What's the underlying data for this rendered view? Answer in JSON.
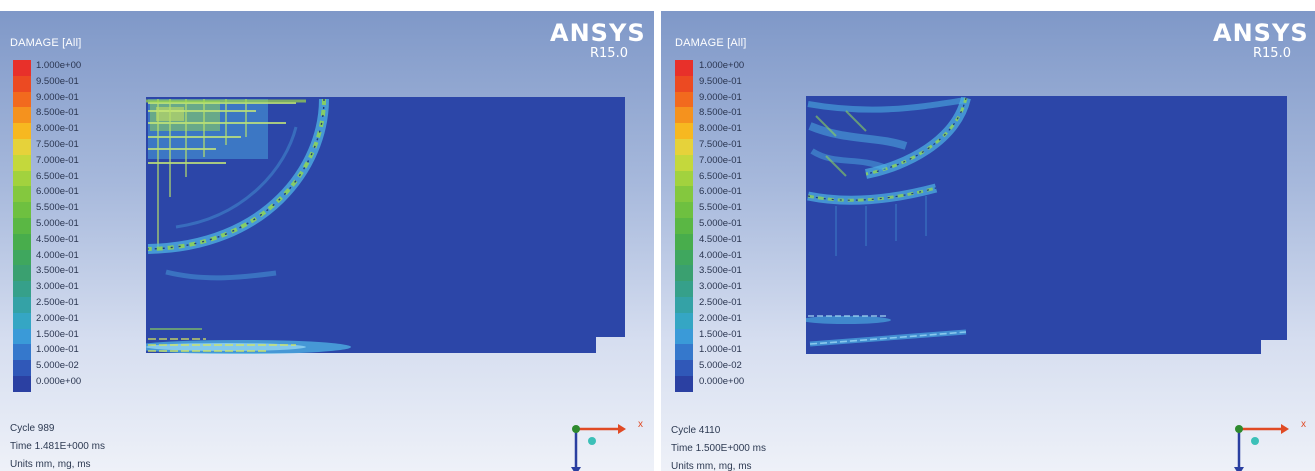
{
  "colors": {
    "background_top": "#7f98c8",
    "background_bottom": "#eef1f8",
    "model_base": "#2c46a8",
    "damage_low": "#4fb4e6",
    "damage_mid": "#8dd35a",
    "damage_high": "#d8e85a",
    "axis_x": "#e04a24",
    "axis_y": "#2e8a2e",
    "axis_z": "#2a3fa0"
  },
  "legend": {
    "title": "DAMAGE [All]",
    "ticks": [
      "1.000e+00",
      "9.500e-01",
      "9.000e-01",
      "8.500e-01",
      "8.000e-01",
      "7.500e-01",
      "7.000e-01",
      "6.500e-01",
      "6.000e-01",
      "5.500e-01",
      "5.000e-01",
      "4.500e-01",
      "4.000e-01",
      "3.500e-01",
      "3.000e-01",
      "2.500e-01",
      "2.000e-01",
      "1.500e-01",
      "1.000e-01",
      "5.000e-02",
      "0.000e+00"
    ],
    "colors": [
      "#e8302a",
      "#ec4a22",
      "#f26a1e",
      "#f5921e",
      "#f7b820",
      "#e6d23a",
      "#c4d83c",
      "#a2d23e",
      "#84c83e",
      "#6ec040",
      "#5ab744",
      "#48ad4c",
      "#3fa75e",
      "#3aa070",
      "#36a08a",
      "#34a2a6",
      "#35a6c4",
      "#3a9ad8",
      "#3578cc",
      "#3058b8",
      "#2b40a2"
    ]
  },
  "logo": {
    "name": "ANSYS",
    "version": "R15.0"
  },
  "triad": {
    "x_label": "x"
  },
  "panels": [
    {
      "cycle": "Cycle 989",
      "time": "Time 1.481E+000 ms",
      "units": "Units mm, mg, ms"
    },
    {
      "cycle": "Cycle 4110",
      "time": "Time 1.500E+000 ms",
      "units": "Units mm, mg, ms"
    }
  ]
}
